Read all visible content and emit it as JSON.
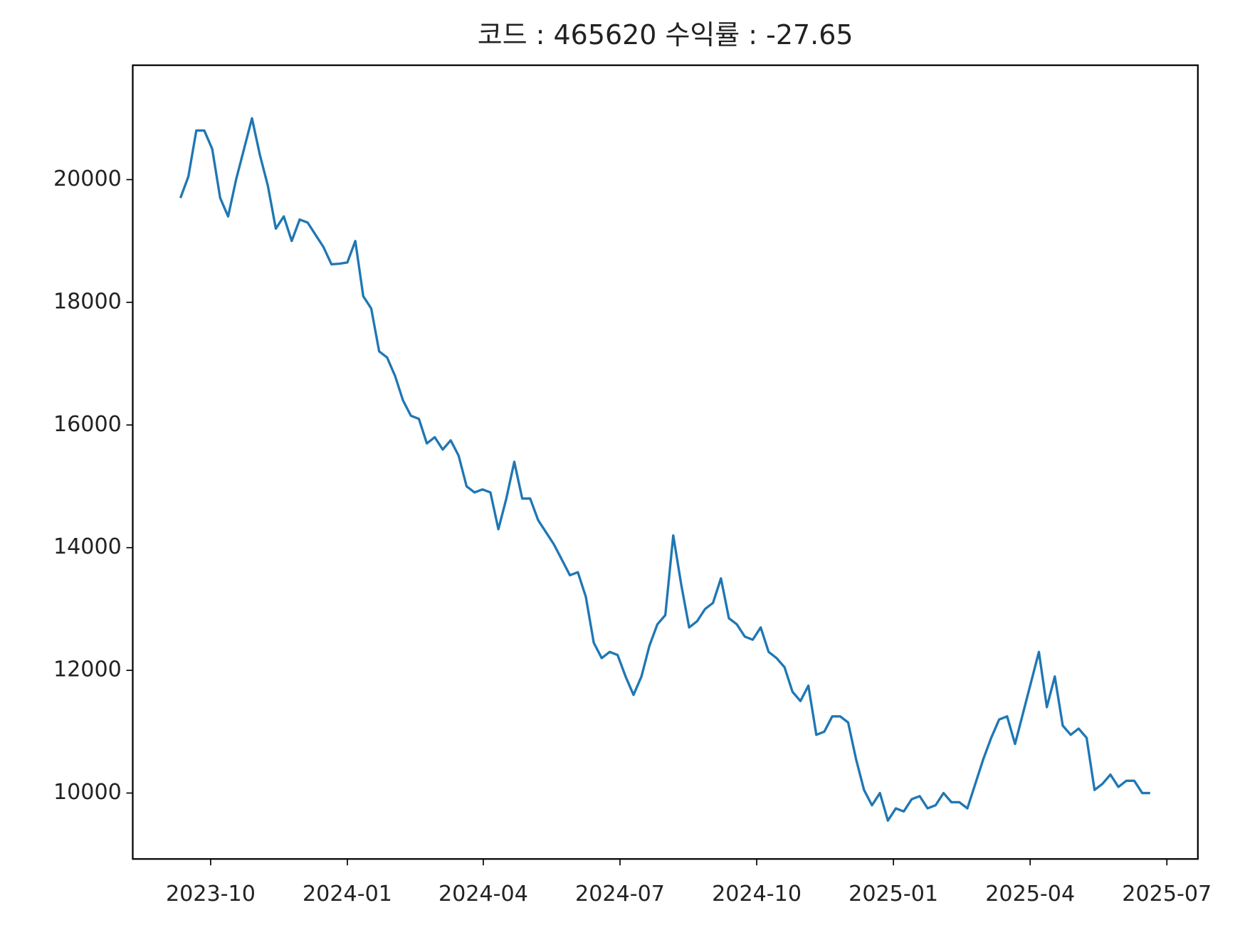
{
  "chart_data": {
    "type": "line",
    "title": "코드 : 465620 수익률 : -27.65",
    "series": [
      {
        "color": "#1f77b4",
        "values": [
          19700,
          20050,
          20800,
          20800,
          20500,
          19700,
          19400,
          20000,
          20500,
          21000,
          20400,
          19900,
          19200,
          19400,
          19000,
          19350,
          19300,
          19100,
          18900,
          18620,
          18630,
          18650,
          19000,
          18100,
          17900,
          17200,
          17100,
          16800,
          16400,
          16150,
          16100,
          15700,
          15800,
          15600,
          15750,
          15500,
          15000,
          14900,
          14950,
          14900,
          14300,
          14800,
          15400,
          14800,
          14800,
          14450,
          14250,
          14050,
          13800,
          13550,
          13600,
          13200,
          12450,
          12200,
          12300,
          12250,
          11900,
          11600,
          11900,
          12400,
          12750,
          12900,
          14200,
          13400,
          12700,
          12800,
          13000,
          13100,
          13500,
          12850,
          12750,
          12550,
          12500,
          12700,
          12300,
          12200,
          12050,
          11650,
          11500,
          11750,
          10950,
          11000,
          11250,
          11250,
          11150,
          10550,
          10050,
          9800,
          10000,
          9550,
          9750,
          9700,
          9900,
          9950,
          9750,
          9800,
          10000,
          9850,
          9850,
          9750,
          10150,
          10550,
          10900,
          11200,
          11250,
          10800,
          11300,
          11800,
          12300,
          11400,
          11900,
          11100,
          10950,
          11050,
          10900,
          10050,
          10150,
          10300,
          10100,
          10200,
          10200,
          10000,
          10000
        ]
      }
    ],
    "xlim": [
      -6,
      128
    ],
    "xticks": [
      {
        "value": 3.8,
        "label": "2023-10"
      },
      {
        "value": 21,
        "label": "2024-01"
      },
      {
        "value": 38.1,
        "label": "2024-04"
      },
      {
        "value": 55.3,
        "label": "2024-07"
      },
      {
        "value": 72.5,
        "label": "2024-10"
      },
      {
        "value": 89.7,
        "label": "2025-01"
      },
      {
        "value": 106.9,
        "label": "2025-04"
      },
      {
        "value": 124.1,
        "label": "2025-07"
      }
    ],
    "ylim": [
      8925,
      21865
    ],
    "yticks": [
      10000,
      12000,
      14000,
      16000,
      18000,
      20000
    ]
  }
}
